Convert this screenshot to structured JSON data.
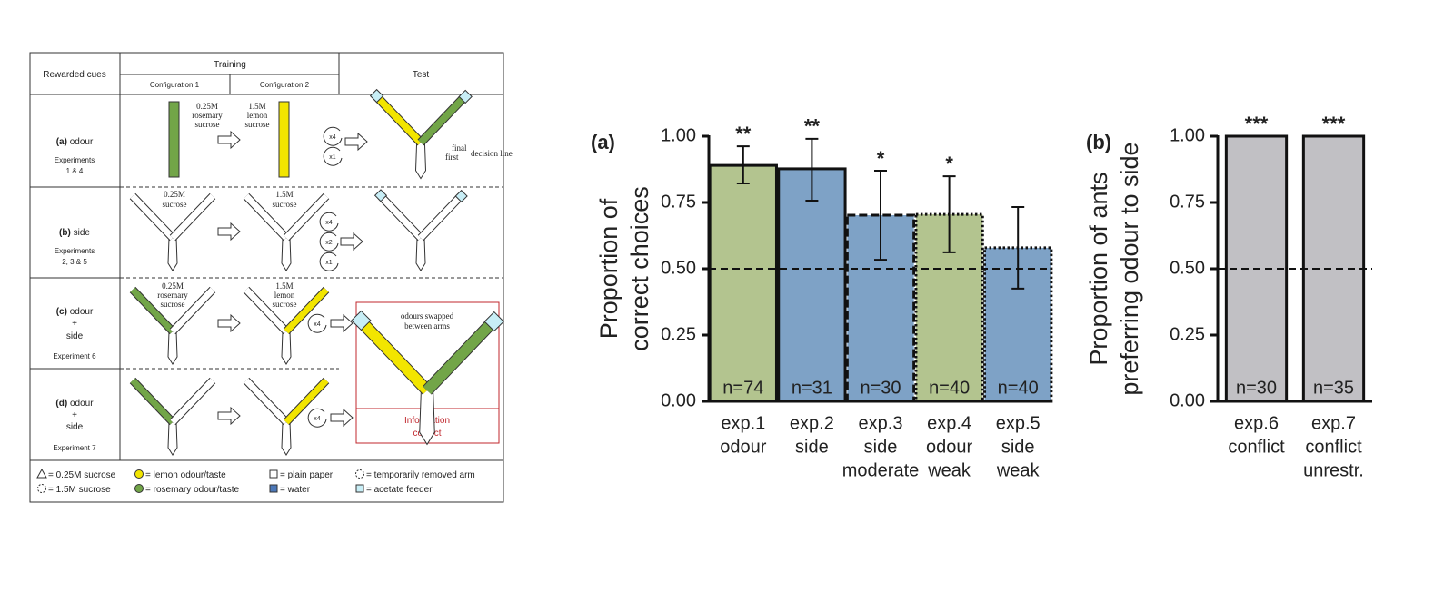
{
  "diagram": {
    "header": {
      "rewarded_cues": "Rewarded cues",
      "training": "Training",
      "config1": "Configuration 1",
      "config2": "Configuration 2",
      "test": "Test"
    },
    "rows": [
      {
        "letter": "(a)",
        "cue": [
          "odour"
        ],
        "experiments": [
          "Experiments",
          "1 & 4"
        ],
        "config1_note": [
          "0.25M",
          "rosemary",
          "sucrose"
        ],
        "config2_note": [
          "1.5M",
          "lemon",
          "sucrose"
        ],
        "repeats": [
          "x4",
          "x1"
        ],
        "test_notes": [
          "final",
          "first",
          "decision line"
        ]
      },
      {
        "letter": "(b)",
        "cue": [
          "side"
        ],
        "experiments": [
          "Experiments",
          "2, 3 & 5"
        ],
        "config1_note": [
          "0.25M",
          "sucrose"
        ],
        "config2_note": [
          "1.5M",
          "sucrose"
        ],
        "repeats": [
          "x4",
          "x2",
          "x1"
        ]
      },
      {
        "letter": "(c)",
        "cue": [
          "odour",
          "+",
          "side"
        ],
        "experiments": [
          "Experiment 6"
        ],
        "config1_note": [
          "0.25M",
          "rosemary",
          "sucrose"
        ],
        "config2_note": [
          "1.5M",
          "lemon",
          "sucrose"
        ],
        "repeats": [
          "x4"
        ],
        "test_notes": [
          "odours swapped",
          "between arms"
        ]
      },
      {
        "letter": "(d)",
        "cue": [
          "odour",
          "+",
          "side"
        ],
        "experiments": [
          "Experiment 7"
        ],
        "repeats": [
          "x4"
        ]
      }
    ],
    "conflict": [
      "Information",
      "conflict"
    ],
    "legend": [
      "= 0.25M sucrose",
      "= 1.5M sucrose",
      "= lemon odour/taste",
      "= rosemary odour/taste",
      "= plain paper",
      "= water",
      "= temporarily removed arm",
      "= acetate feeder"
    ]
  },
  "chart_data": [
    {
      "type": "bar",
      "title": "(a)",
      "ylabel": [
        "Proportion of",
        "correct choices"
      ],
      "categories": [
        [
          "exp.1",
          "odour"
        ],
        [
          "exp.2",
          "side"
        ],
        [
          "exp.3",
          "side",
          "moderate"
        ],
        [
          "exp.4",
          "odour",
          "weak"
        ],
        [
          "exp.5",
          "side",
          "weak"
        ]
      ],
      "values": [
        0.89,
        0.877,
        0.702,
        0.705,
        0.579
      ],
      "ci": [
        [
          0.822,
          0.962
        ],
        [
          0.757,
          0.99
        ],
        [
          0.534,
          0.87
        ],
        [
          0.562,
          0.849
        ],
        [
          0.425,
          0.733
        ]
      ],
      "colors": [
        "#b3c48f",
        "#7ea2c6",
        "#7ea2c6",
        "#b3c48f",
        "#7ea2c6"
      ],
      "border_styles": [
        "solid",
        "solid",
        "dashed",
        "dotted",
        "dotted"
      ],
      "stars": [
        "**",
        "**",
        "*",
        "*",
        null
      ],
      "n_labels": [
        "n=74",
        "n=31",
        "n=30",
        "n=40",
        "n=40"
      ],
      "hline": 0.5,
      "ylim": [
        0,
        1
      ],
      "yticks": [
        {
          "value": 0,
          "label": "0.00"
        },
        {
          "value": 0.25,
          "label": "0.25"
        },
        {
          "value": 0.5,
          "label": "0.50"
        },
        {
          "value": 0.75,
          "label": "0.75"
        },
        {
          "value": 1,
          "label": "1.00"
        }
      ]
    },
    {
      "type": "bar",
      "title": "(b)",
      "ylabel": [
        "Proportion of ants",
        "preferring odour to side"
      ],
      "categories": [
        [
          "exp.6",
          "conflict"
        ],
        [
          "exp.7",
          "conflict",
          "unrestr."
        ]
      ],
      "values": [
        1,
        1
      ],
      "colors": [
        "#c1c0c4",
        "#c1c0c4"
      ],
      "border_styles": [
        "solid",
        "solid"
      ],
      "stars": [
        "***",
        "***"
      ],
      "n_labels": [
        "n=30",
        "n=35"
      ],
      "hline": 0.5,
      "ylim": [
        0,
        1
      ],
      "yticks": [
        {
          "value": 0,
          "label": "0.00"
        },
        {
          "value": 0.25,
          "label": "0.25"
        },
        {
          "value": 0.5,
          "label": "0.50"
        },
        {
          "value": 0.75,
          "label": "0.75"
        },
        {
          "value": 1,
          "label": "1.00"
        }
      ]
    }
  ]
}
